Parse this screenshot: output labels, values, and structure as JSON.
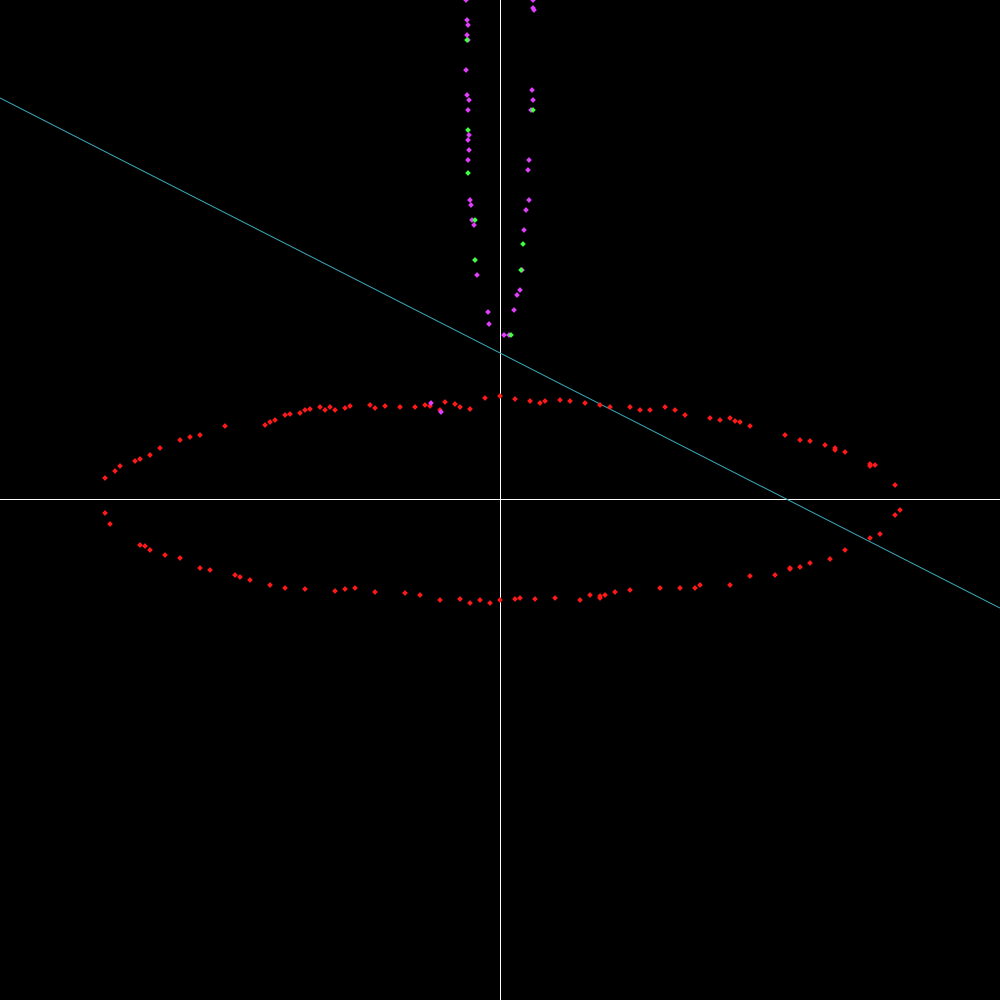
{
  "chart_data": {
    "type": "scatter",
    "title": "",
    "xlabel": "",
    "ylabel": "",
    "xlim": [
      -1,
      1
    ],
    "ylim": [
      -1,
      1
    ],
    "grid": false,
    "legend": "none",
    "background_color": "#000000",
    "axis_color": "#ffffff",
    "axes": {
      "show_x_axis": true,
      "show_y_axis": true,
      "tick_labels": false
    },
    "line": {
      "name": "",
      "color": "#3aaab8",
      "slope": -0.51,
      "intercept": 0.294
    },
    "series": [
      {
        "name": "",
        "color": "#ff1a1a",
        "points": [
          [
            -0.79,
            0.044
          ],
          [
            -0.77,
            0.058
          ],
          [
            -0.76,
            0.068
          ],
          [
            -0.73,
            0.078
          ],
          [
            -0.72,
            0.082
          ],
          [
            -0.7,
            0.09
          ],
          [
            -0.68,
            0.104
          ],
          [
            -0.64,
            0.12
          ],
          [
            -0.62,
            0.126
          ],
          [
            -0.6,
            0.13
          ],
          [
            -0.55,
            0.148
          ],
          [
            -0.47,
            0.15
          ],
          [
            -0.46,
            0.156
          ],
          [
            -0.45,
            0.16
          ],
          [
            -0.43,
            0.17
          ],
          [
            -0.42,
            0.172
          ],
          [
            -0.4,
            0.174
          ],
          [
            -0.39,
            0.18
          ],
          [
            -0.38,
            0.182
          ],
          [
            -0.36,
            0.186
          ],
          [
            -0.34,
            0.186
          ],
          [
            -0.33,
            0.18
          ],
          [
            -0.31,
            0.184
          ],
          [
            -0.3,
            0.188
          ],
          [
            -0.26,
            0.19
          ],
          [
            -0.23,
            0.188
          ],
          [
            -0.2,
            0.186
          ],
          [
            -0.17,
            0.186
          ],
          [
            -0.14,
            0.188
          ],
          [
            -0.11,
            0.196
          ],
          [
            -0.09,
            0.192
          ],
          [
            -0.08,
            0.186
          ],
          [
            -0.06,
            0.182
          ],
          [
            -0.03,
            0.204
          ],
          [
            0.0,
            0.208
          ],
          [
            0.03,
            0.202
          ],
          [
            0.06,
            0.198
          ],
          [
            0.09,
            0.198
          ],
          [
            0.12,
            0.2
          ],
          [
            0.14,
            0.198
          ],
          [
            0.17,
            0.194
          ],
          [
            0.2,
            0.19
          ],
          [
            0.22,
            0.186
          ],
          [
            0.26,
            0.186
          ],
          [
            0.3,
            0.18
          ],
          [
            0.33,
            0.186
          ],
          [
            0.35,
            0.18
          ],
          [
            0.37,
            0.17
          ],
          [
            0.42,
            0.164
          ],
          [
            0.44,
            0.16
          ],
          [
            0.46,
            0.164
          ],
          [
            0.48,
            0.156
          ],
          [
            0.5,
            0.148
          ],
          [
            0.57,
            0.13
          ],
          [
            0.6,
            0.12
          ],
          [
            0.62,
            0.118
          ],
          [
            0.65,
            0.11
          ],
          [
            0.67,
            0.104
          ],
          [
            0.69,
            0.096
          ],
          [
            0.74,
            0.072
          ],
          [
            0.75,
            0.07
          ],
          [
            0.79,
            0.03
          ],
          [
            0.8,
            -0.02
          ],
          [
            0.79,
            -0.03
          ],
          [
            0.76,
            -0.068
          ],
          [
            0.74,
            -0.076
          ],
          [
            0.69,
            -0.1
          ],
          [
            0.66,
            -0.118
          ],
          [
            0.62,
            -0.126
          ],
          [
            0.6,
            -0.134
          ],
          [
            0.58,
            -0.136
          ],
          [
            0.55,
            -0.15
          ],
          [
            0.5,
            -0.152
          ],
          [
            0.46,
            -0.17
          ],
          [
            0.4,
            -0.17
          ],
          [
            0.39,
            -0.176
          ],
          [
            0.36,
            -0.176
          ],
          [
            0.32,
            -0.176
          ],
          [
            0.26,
            -0.18
          ],
          [
            0.23,
            -0.184
          ],
          [
            0.21,
            -0.19
          ],
          [
            0.2,
            -0.196
          ],
          [
            0.18,
            -0.19
          ],
          [
            0.16,
            -0.2
          ],
          [
            0.11,
            -0.196
          ],
          [
            0.07,
            -0.198
          ],
          [
            0.04,
            -0.196
          ],
          [
            0.03,
            -0.198
          ],
          [
            0.0,
            -0.2
          ],
          [
            -0.02,
            -0.206
          ],
          [
            -0.04,
            -0.2
          ],
          [
            -0.06,
            -0.206
          ],
          [
            -0.08,
            -0.198
          ],
          [
            -0.12,
            -0.2
          ],
          [
            -0.16,
            -0.19
          ],
          [
            -0.19,
            -0.186
          ],
          [
            -0.25,
            -0.184
          ],
          [
            -0.31,
            -0.178
          ],
          [
            -0.33,
            -0.182
          ],
          [
            -0.39,
            -0.178
          ],
          [
            -0.43,
            -0.176
          ],
          [
            -0.46,
            -0.17
          ],
          [
            -0.5,
            -0.16
          ],
          [
            -0.53,
            -0.15
          ],
          [
            -0.58,
            -0.14
          ],
          [
            -0.6,
            -0.136
          ],
          [
            -0.64,
            -0.116
          ],
          [
            -0.7,
            -0.1
          ],
          [
            -0.71,
            -0.092
          ],
          [
            -0.72,
            -0.09
          ],
          [
            -0.78,
            -0.048
          ],
          [
            -0.79,
            -0.026
          ],
          [
            -0.35,
            0.18
          ],
          [
            -0.25,
            0.184
          ],
          [
            -0.15,
            0.19
          ],
          [
            -0.12,
            0.18
          ],
          [
            0.08,
            0.194
          ],
          [
            0.28,
            0.18
          ],
          [
            0.47,
            0.158
          ],
          [
            0.67,
            0.1
          ],
          [
            0.74,
            0.068
          ],
          [
            0.58,
            -0.138
          ],
          [
            0.2,
            -0.192
          ],
          [
            -0.29,
            -0.176
          ],
          [
            -0.52,
            -0.154
          ],
          [
            -0.67,
            -0.11
          ]
        ]
      },
      {
        "name": "",
        "color": "#e040fb",
        "points": [
          [
            -0.068,
            1.0
          ],
          [
            -0.066,
            0.96
          ],
          [
            -0.064,
            0.95
          ],
          [
            -0.066,
            0.93
          ],
          [
            -0.064,
            0.92
          ],
          [
            -0.068,
            0.86
          ],
          [
            -0.066,
            0.81
          ],
          [
            -0.062,
            0.8
          ],
          [
            -0.064,
            0.78
          ],
          [
            -0.062,
            0.73
          ],
          [
            -0.064,
            0.72
          ],
          [
            -0.062,
            0.7
          ],
          [
            -0.064,
            0.68
          ],
          [
            -0.06,
            0.6
          ],
          [
            -0.058,
            0.59
          ],
          [
            -0.056,
            0.56
          ],
          [
            -0.052,
            0.55
          ],
          [
            -0.05,
            0.48
          ],
          [
            -0.046,
            0.45
          ],
          [
            -0.024,
            0.376
          ],
          [
            -0.022,
            0.352
          ],
          [
            0.066,
            1.0
          ],
          [
            0.066,
            0.984
          ],
          [
            0.068,
            0.98
          ],
          [
            0.064,
            0.82
          ],
          [
            0.066,
            0.8
          ],
          [
            0.062,
            0.78
          ],
          [
            0.058,
            0.68
          ],
          [
            0.056,
            0.66
          ],
          [
            0.058,
            0.6
          ],
          [
            0.052,
            0.58
          ],
          [
            0.048,
            0.54
          ],
          [
            0.044,
            0.46
          ],
          [
            0.04,
            0.42
          ],
          [
            0.034,
            0.41
          ],
          [
            0.028,
            0.38
          ],
          [
            0.018,
            0.33
          ],
          [
            0.008,
            0.33
          ],
          [
            -0.118,
            0.176
          ],
          [
            -0.138,
            0.194
          ]
        ]
      },
      {
        "name": "",
        "color": "#40ff40",
        "points": [
          [
            -0.066,
            0.92
          ],
          [
            -0.064,
            0.74
          ],
          [
            -0.064,
            0.654
          ],
          [
            -0.05,
            0.56
          ],
          [
            -0.05,
            0.48
          ],
          [
            0.066,
            0.78
          ],
          [
            0.046,
            0.512
          ],
          [
            0.042,
            0.46
          ],
          [
            0.022,
            0.33
          ]
        ]
      }
    ]
  }
}
